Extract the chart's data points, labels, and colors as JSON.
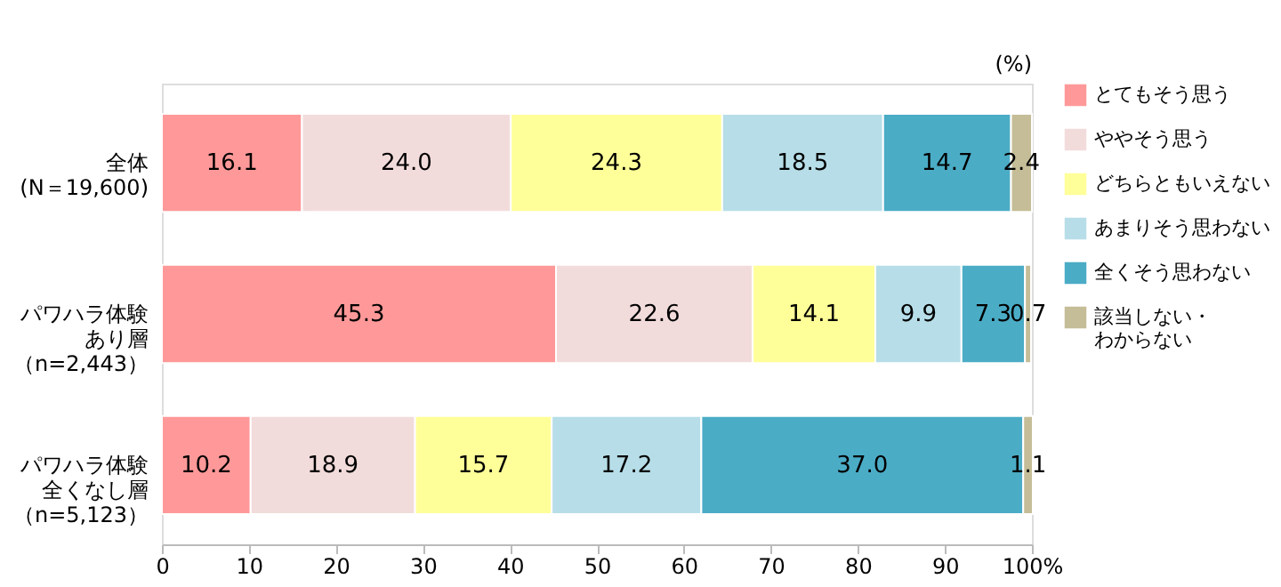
{
  "chart_data": {
    "type": "bar",
    "orientation": "horizontal",
    "stacked": true,
    "grid": false,
    "legend": "right",
    "categories": [
      "全体(N＝19,600)",
      "パワハラ体験あり層（n=2,443）",
      "パワハラ体験全くなし層（n=5,123）"
    ],
    "xlim": [
      0,
      100
    ],
    "xticks": [
      0,
      10,
      20,
      30,
      40,
      50,
      60,
      70,
      80,
      90,
      {
        "value": 100,
        "label": "100%"
      }
    ],
    "annotations": [
      "(%)"
    ],
    "series": [
      {
        "name": "とてもそう思う",
        "color": "#ff9999",
        "values": [
          16.1,
          45.3,
          10.2
        ],
        "value_labels": [
          "16.1",
          "45.3",
          "10.2"
        ]
      },
      {
        "name": "ややそう思う",
        "color": "#f2dcdb",
        "values": [
          24.0,
          22.6,
          18.9
        ],
        "value_labels": [
          "24.0",
          "22.6",
          "18.9"
        ]
      },
      {
        "name": "どちらともいえない",
        "color": "#ffff99",
        "values": [
          24.3,
          14.1,
          15.7
        ],
        "value_labels": [
          "24.3",
          "14.1",
          "15.7"
        ]
      },
      {
        "name": "あまりそう思わない",
        "color": "#b7dee8",
        "values": [
          18.5,
          9.9,
          17.2
        ],
        "value_labels": [
          "18.5",
          "9.9",
          "17.2"
        ]
      },
      {
        "name": "全くそう思わない",
        "color": "#4bacc6",
        "values": [
          14.7,
          7.3,
          37.0
        ],
        "value_labels": [
          "14.7",
          "7.3",
          "37.0"
        ]
      },
      {
        "name": "該当しない・わからない",
        "color": "#c4bd97",
        "values": [
          2.4,
          0.7,
          1.1
        ],
        "value_labels": [
          "2.4",
          "0.7",
          "1.1"
        ]
      }
    ]
  }
}
